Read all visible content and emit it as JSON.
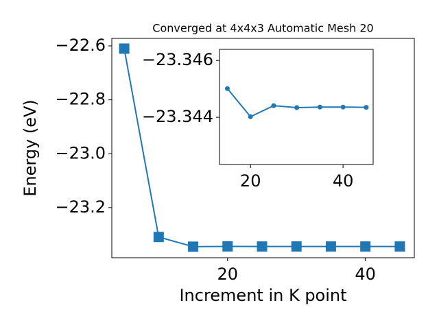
{
  "chart_data": [
    {
      "type": "line",
      "title": "Converged at 4x4x3 Automatic Mesh 20",
      "x_label": "Increment in K point",
      "y_label": "Energy (eV)",
      "x": [
        5,
        10,
        15,
        20,
        25,
        30,
        35,
        40,
        45
      ],
      "series": [
        {
          "name": null,
          "color": "#1f77b4",
          "marker": "square",
          "values": [
            -22.61,
            -23.309,
            -23.345,
            -23.344,
            -23.3444,
            -23.3443,
            -23.3444,
            -23.3444,
            -23.3444
          ]
        }
      ],
      "xlim": [
        3.2,
        47.1
      ],
      "xticks": [
        20,
        40
      ],
      "ylim": [
        -23.386,
        -22.572
      ],
      "yticks": [
        {
          "value": -22.6,
          "label": "−22.6"
        },
        {
          "value": -22.8,
          "label": "−22.8"
        },
        {
          "value": -23.0,
          "label": "−23.0"
        },
        {
          "value": -23.2,
          "label": "−23.2"
        }
      ]
    },
    {
      "type": "line",
      "x": [
        15,
        20,
        25,
        30,
        35,
        40,
        45
      ],
      "series": [
        {
          "name": null,
          "color": "#1f77b4",
          "marker": "circle",
          "values": [
            -23.34501,
            -23.34402,
            -23.34441,
            -23.34434,
            -23.34436,
            -23.34436,
            -23.34435
          ]
        }
      ],
      "xlim": [
        13.3,
        46.5
      ],
      "xticks": [
        20,
        40
      ],
      "ylim": [
        -23.34234,
        -23.34639
      ],
      "yticks": [
        {
          "value": -23.346,
          "label": "−23.346"
        },
        {
          "value": -23.344,
          "label": "−23.344"
        }
      ]
    }
  ]
}
